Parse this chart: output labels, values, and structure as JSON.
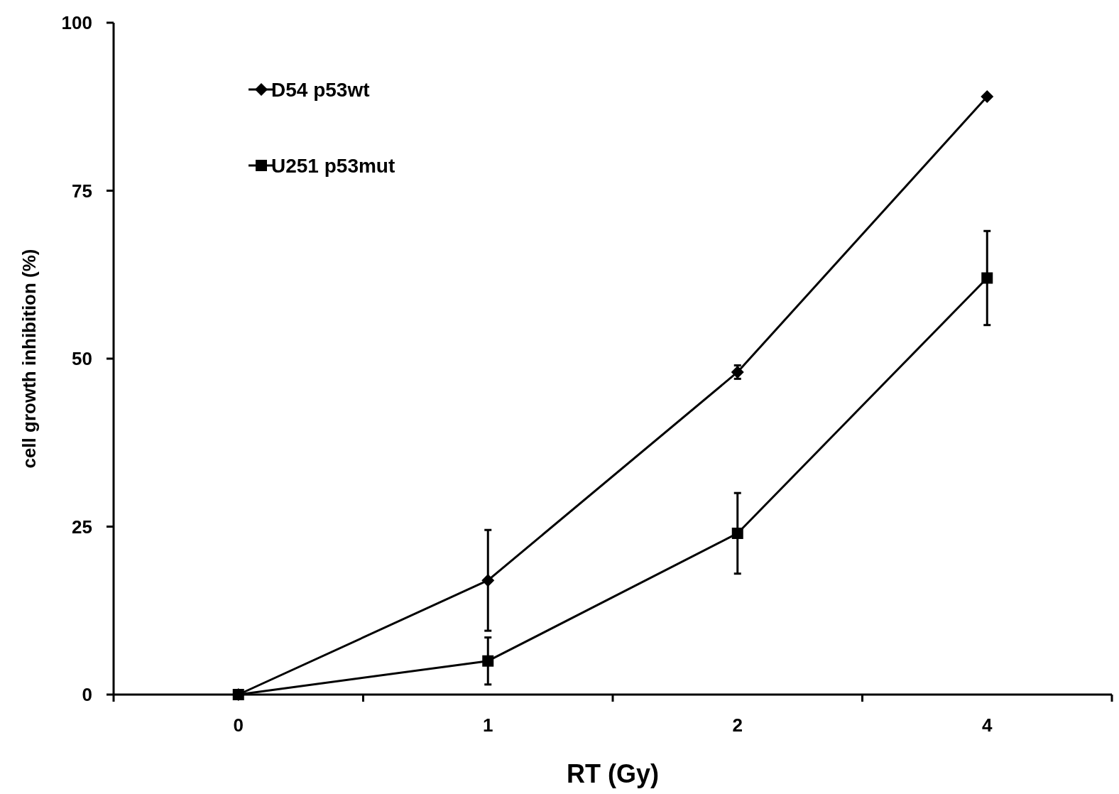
{
  "chart_data": {
    "type": "line",
    "xlabel": "RT (Gy)",
    "ylabel": "cell growth inhibition (%)",
    "categories": [
      "0",
      "1",
      "2",
      "4"
    ],
    "ylim": [
      0,
      100
    ],
    "yticks": [
      0,
      25,
      50,
      75,
      100
    ],
    "grid": false,
    "legend": "top left",
    "line_style": "solid",
    "series": [
      {
        "name": "D54 p53wt",
        "color": "#000000",
        "marker": "diamond",
        "values": [
          0,
          17,
          48,
          89
        ],
        "errors": [
          null,
          7.5,
          1,
          null
        ]
      },
      {
        "name": "U251 p53mut",
        "color": "#000000",
        "marker": "square",
        "values": [
          0,
          5,
          24,
          62
        ],
        "errors": [
          null,
          3.5,
          6,
          7
        ]
      }
    ]
  }
}
